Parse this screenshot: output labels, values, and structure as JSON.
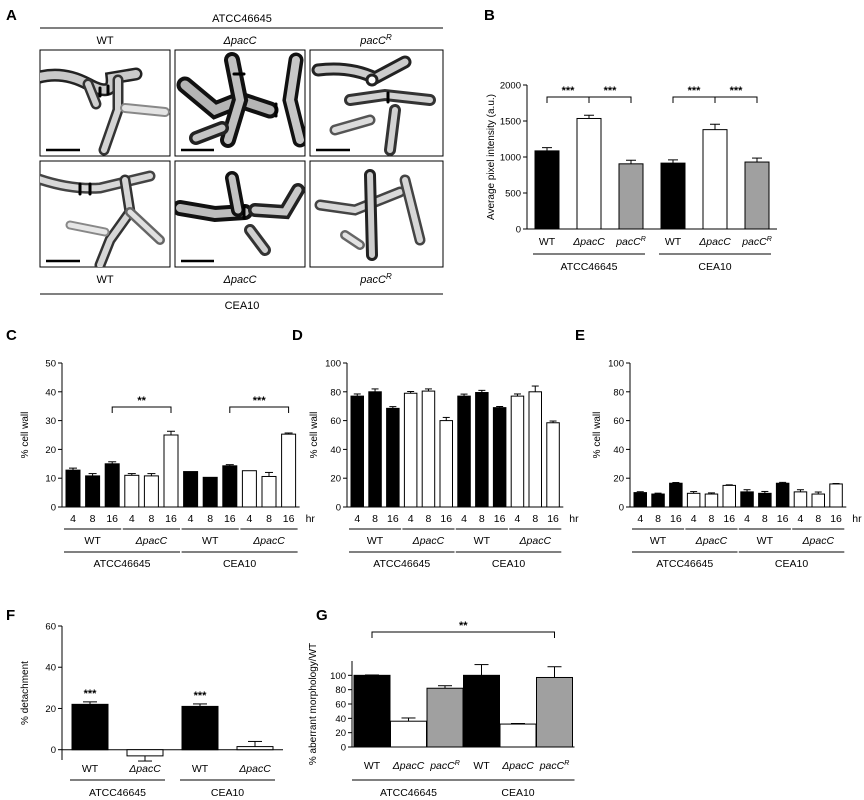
{
  "panel_labels": [
    "A",
    "B",
    "C",
    "D",
    "E",
    "F",
    "G"
  ],
  "panel_a": {
    "top_strain": "ATCC46645",
    "bottom_strain": "CEA10",
    "column_labels": [
      {
        "text": "WT",
        "italic": false,
        "sup": ""
      },
      {
        "text": "ΔpacC",
        "italic": true,
        "sup": ""
      },
      {
        "text": "pacC",
        "italic": true,
        "sup": "R"
      }
    ]
  },
  "chart_data": [
    {
      "panel": "B",
      "type": "bar",
      "ylabel": "Average pixel intensity (a.u.)",
      "ylim": [
        0,
        2000
      ],
      "yticks": [
        0,
        500,
        1000,
        1500,
        2000
      ],
      "categories": [
        {
          "text": "WT",
          "italic": false,
          "sup": ""
        },
        {
          "text": "ΔpacC",
          "italic": true,
          "sup": ""
        },
        {
          "text": "pacC",
          "italic": true,
          "sup": "R"
        },
        {
          "text": "WT",
          "italic": false,
          "sup": ""
        },
        {
          "text": "ΔpacC",
          "italic": true,
          "sup": ""
        },
        {
          "text": "pacC",
          "italic": true,
          "sup": "R"
        }
      ],
      "values": [
        1085,
        1535,
        905,
        915,
        1380,
        930
      ],
      "errors": [
        45,
        45,
        50,
        45,
        75,
        55
      ],
      "fills": [
        "#000000",
        "#ffffff",
        "#a0a0a0",
        "#000000",
        "#ffffff",
        "#a0a0a0"
      ],
      "groups": [
        {
          "label": "ATCC46645",
          "from": 0,
          "to": 2
        },
        {
          "label": "CEA10",
          "from": 3,
          "to": 5
        }
      ],
      "significance": [
        {
          "from": 0,
          "to": 1,
          "label": "***"
        },
        {
          "from": 1,
          "to": 2,
          "label": "***"
        },
        {
          "from": 3,
          "to": 4,
          "label": "***"
        },
        {
          "from": 4,
          "to": 5,
          "label": "***"
        }
      ]
    },
    {
      "panel": "C",
      "type": "bar",
      "ylabel": "% cell wall",
      "ylim": [
        0,
        50
      ],
      "yticks": [
        0,
        10,
        20,
        30,
        40,
        50
      ],
      "hr_label": "hr",
      "categories": [
        "4",
        "8",
        "16",
        "4",
        "8",
        "16",
        "4",
        "8",
        "16",
        "4",
        "8",
        "16"
      ],
      "values": [
        12.8,
        10.8,
        15,
        11,
        10.8,
        25,
        12.3,
        10.3,
        14.3,
        12.6,
        10.6,
        25.3
      ],
      "errors": [
        0.7,
        0.8,
        0.7,
        0.6,
        0.8,
        1.3,
        0,
        0,
        0.4,
        0,
        1.4,
        0.4
      ],
      "fills": [
        "#000000",
        "#000000",
        "#000000",
        "#ffffff",
        "#ffffff",
        "#ffffff",
        "#000000",
        "#000000",
        "#000000",
        "#ffffff",
        "#ffffff",
        "#ffffff"
      ],
      "subgroups": [
        {
          "text": "WT",
          "italic": false,
          "from": 0,
          "to": 2
        },
        {
          "text": "ΔpacC",
          "italic": true,
          "from": 3,
          "to": 5
        },
        {
          "text": "WT",
          "italic": false,
          "from": 6,
          "to": 8
        },
        {
          "text": "ΔpacC",
          "italic": true,
          "from": 9,
          "to": 11
        }
      ],
      "groups": [
        {
          "label": "ATCC46645",
          "from": 0,
          "to": 5
        },
        {
          "label": "CEA10",
          "from": 6,
          "to": 11
        }
      ],
      "significance": [
        {
          "from": 2,
          "to": 5,
          "label": "**"
        },
        {
          "from": 8,
          "to": 11,
          "label": "***"
        }
      ]
    },
    {
      "panel": "D",
      "type": "bar",
      "ylabel": "% cell wall",
      "ylim": [
        0,
        100
      ],
      "yticks": [
        0,
        20,
        40,
        60,
        80,
        100
      ],
      "hr_label": "hr",
      "categories": [
        "4",
        "8",
        "16",
        "4",
        "8",
        "16",
        "4",
        "8",
        "16",
        "4",
        "8",
        "16"
      ],
      "values": [
        77,
        80,
        68.5,
        79,
        80.5,
        60,
        77,
        79.5,
        69,
        77,
        80,
        58.5
      ],
      "errors": [
        1.5,
        2,
        1.2,
        1.2,
        1.5,
        2.2,
        1.4,
        1.5,
        0.8,
        1.5,
        4,
        1.2
      ],
      "fills": [
        "#000000",
        "#000000",
        "#000000",
        "#ffffff",
        "#ffffff",
        "#ffffff",
        "#000000",
        "#000000",
        "#000000",
        "#ffffff",
        "#ffffff",
        "#ffffff"
      ],
      "subgroups": [
        {
          "text": "WT",
          "italic": false,
          "from": 0,
          "to": 2
        },
        {
          "text": "ΔpacC",
          "italic": true,
          "from": 3,
          "to": 5
        },
        {
          "text": "WT",
          "italic": false,
          "from": 6,
          "to": 8
        },
        {
          "text": "ΔpacC",
          "italic": true,
          "from": 9,
          "to": 11
        }
      ],
      "groups": [
        {
          "label": "ATCC46645",
          "from": 0,
          "to": 5
        },
        {
          "label": "CEA10",
          "from": 6,
          "to": 11
        }
      ],
      "significance": []
    },
    {
      "panel": "E",
      "type": "bar",
      "ylabel": "% cell wall",
      "ylim": [
        0,
        100
      ],
      "yticks": [
        0,
        20,
        40,
        60,
        80,
        100
      ],
      "hr_label": "hr",
      "categories": [
        "4",
        "8",
        "16",
        "4",
        "8",
        "16",
        "4",
        "8",
        "16",
        "4",
        "8",
        "16"
      ],
      "values": [
        10,
        9,
        16.5,
        9.5,
        9,
        15,
        10.5,
        9.5,
        16.5,
        10.5,
        9,
        16
      ],
      "errors": [
        0.6,
        0.6,
        0.5,
        1.2,
        0.8,
        0.4,
        1.5,
        1.3,
        0.6,
        1.5,
        1.4,
        0.3
      ],
      "fills": [
        "#000000",
        "#000000",
        "#000000",
        "#ffffff",
        "#ffffff",
        "#ffffff",
        "#000000",
        "#000000",
        "#000000",
        "#ffffff",
        "#ffffff",
        "#ffffff"
      ],
      "subgroups": [
        {
          "text": "WT",
          "italic": false,
          "from": 0,
          "to": 2
        },
        {
          "text": "ΔpacC",
          "italic": true,
          "from": 3,
          "to": 5
        },
        {
          "text": "WT",
          "italic": false,
          "from": 6,
          "to": 8
        },
        {
          "text": "ΔpacC",
          "italic": true,
          "from": 9,
          "to": 11
        }
      ],
      "groups": [
        {
          "label": "ATCC46645",
          "from": 0,
          "to": 5
        },
        {
          "label": "CEA10",
          "from": 6,
          "to": 11
        }
      ],
      "significance": []
    },
    {
      "panel": "F",
      "type": "bar",
      "ylabel": "% detachment",
      "ylim": [
        -5,
        60
      ],
      "yticks": [
        0,
        20,
        40,
        60
      ],
      "categories": [
        {
          "text": "WT",
          "italic": false,
          "sup": ""
        },
        {
          "text": "ΔpacC",
          "italic": true,
          "sup": ""
        },
        {
          "text": "WT",
          "italic": false,
          "sup": ""
        },
        {
          "text": "ΔpacC",
          "italic": true,
          "sup": ""
        }
      ],
      "values": [
        22,
        -3,
        21,
        1.5
      ],
      "errors": [
        1.2,
        2.5,
        1.2,
        2.5
      ],
      "fills": [
        "#000000",
        "#ffffff",
        "#000000",
        "#ffffff"
      ],
      "stars": [
        "***",
        "",
        "***",
        ""
      ],
      "groups": [
        {
          "label": "ATCC46645",
          "from": 0,
          "to": 1
        },
        {
          "label": "CEA10",
          "from": 2,
          "to": 3
        }
      ]
    },
    {
      "panel": "G",
      "type": "bar",
      "ylabel": "% aberrant morphology/WT",
      "ylim": [
        0,
        120
      ],
      "yticks": [
        0,
        20,
        40,
        60,
        80,
        100
      ],
      "categories": [
        {
          "text": "WT",
          "italic": false,
          "sup": ""
        },
        {
          "text": "ΔpacC",
          "italic": true,
          "sup": ""
        },
        {
          "text": "pacC",
          "italic": true,
          "sup": "R"
        },
        {
          "text": "WT",
          "italic": false,
          "sup": ""
        },
        {
          "text": "ΔpacC",
          "italic": true,
          "sup": ""
        },
        {
          "text": "pacC",
          "italic": true,
          "sup": "R"
        }
      ],
      "values": [
        100,
        36,
        82,
        100,
        32,
        97
      ],
      "errors": [
        0.5,
        4.5,
        3.5,
        15,
        0.8,
        15
      ],
      "fills": [
        "#000000",
        "#ffffff",
        "#a0a0a0",
        "#000000",
        "#ffffff",
        "#a0a0a0"
      ],
      "groups": [
        {
          "label": "ATCC46645",
          "from": 0,
          "to": 2
        },
        {
          "label": "CEA10",
          "from": 3,
          "to": 5
        }
      ],
      "significance": [
        {
          "from": 0,
          "to": 5,
          "label": "**"
        }
      ]
    }
  ]
}
